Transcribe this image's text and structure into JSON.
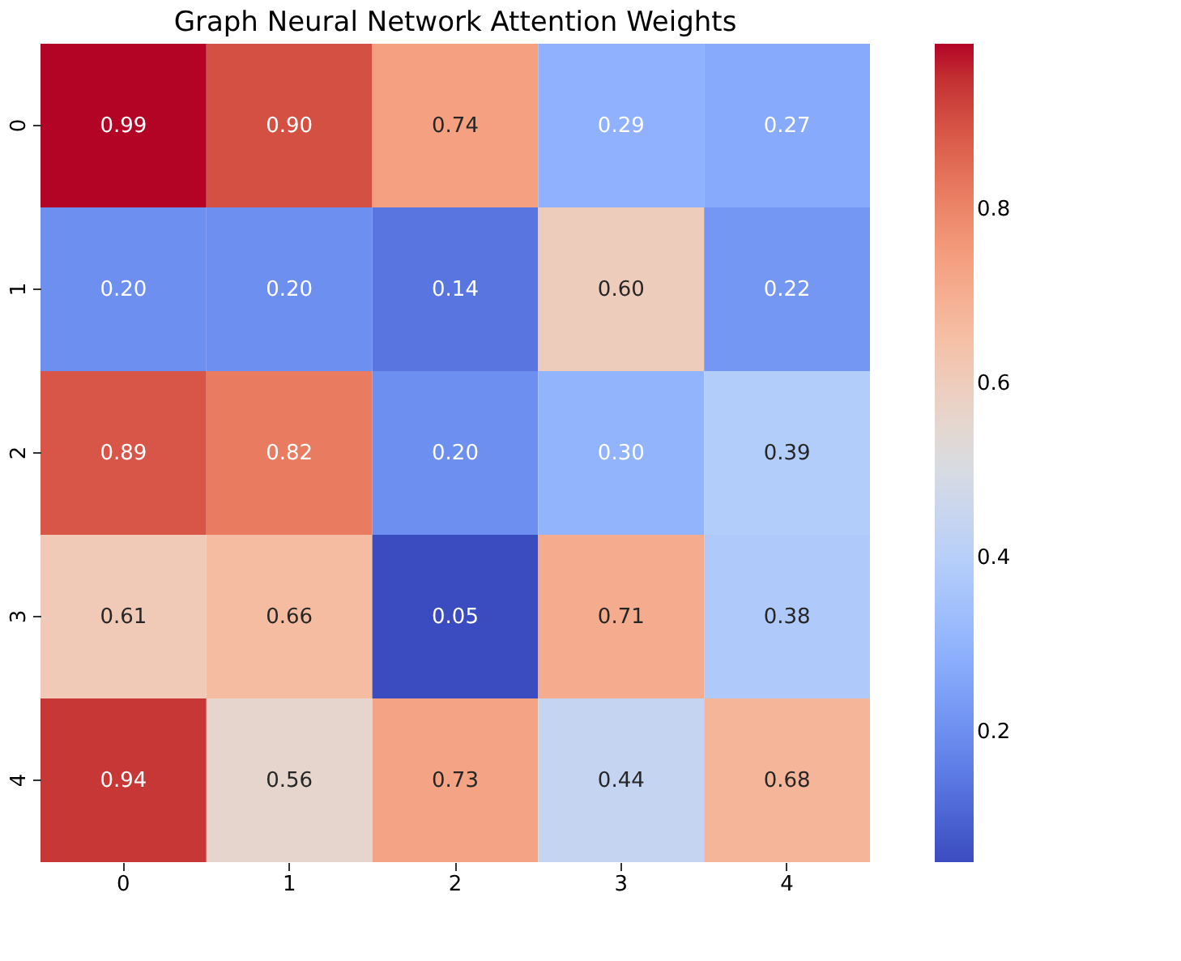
{
  "chart_data": {
    "type": "heatmap",
    "title": "Graph Neural Network Attention Weights",
    "categories": [
      "0",
      "1",
      "2",
      "3",
      "4"
    ],
    "y_categories": [
      "0",
      "1",
      "2",
      "3",
      "4"
    ],
    "cells": [
      [
        0.99,
        0.9,
        0.74,
        0.29,
        0.27
      ],
      [
        0.2,
        0.2,
        0.14,
        0.6,
        0.22
      ],
      [
        0.89,
        0.82,
        0.2,
        0.3,
        0.39
      ],
      [
        0.61,
        0.66,
        0.05,
        0.71,
        0.38
      ],
      [
        0.94,
        0.56,
        0.73,
        0.44,
        0.68
      ]
    ],
    "cell_labels": [
      [
        "0.99",
        "0.90",
        "0.74",
        "0.29",
        "0.27"
      ],
      [
        "0.20",
        "0.20",
        "0.14",
        "0.60",
        "0.22"
      ],
      [
        "0.89",
        "0.82",
        "0.20",
        "0.30",
        "0.39"
      ],
      [
        "0.61",
        "0.66",
        "0.05",
        "0.71",
        "0.38"
      ],
      [
        "0.94",
        "0.56",
        "0.73",
        "0.44",
        "0.68"
      ]
    ],
    "clim": [
      0.05,
      0.99
    ],
    "cticks": [
      0.2,
      0.4,
      0.6,
      0.8
    ],
    "grid": false
  }
}
